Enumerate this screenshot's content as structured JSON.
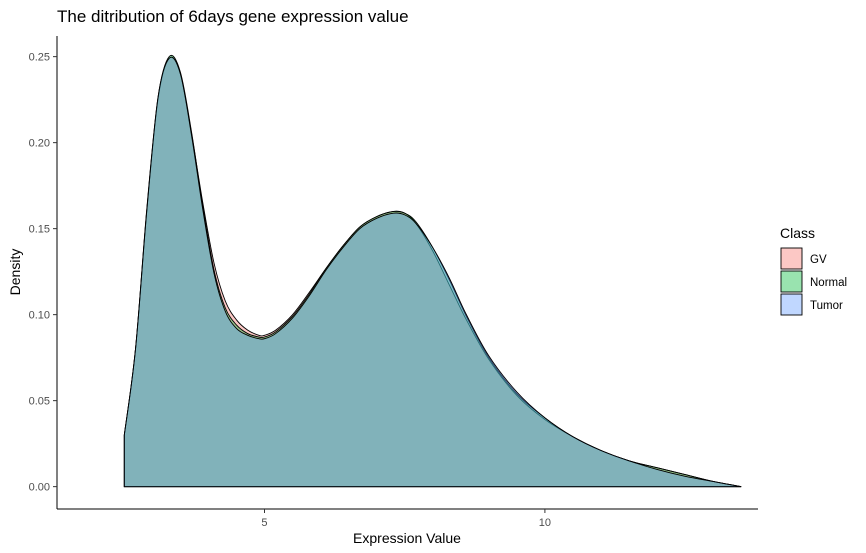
{
  "chart_data": {
    "type": "area",
    "title": "The ditribution of 6days gene expression value",
    "xlabel": "Expression Value",
    "ylabel": "Density",
    "xlim": [
      1.3,
      13.8
    ],
    "ylim": [
      -0.013,
      0.262
    ],
    "x_ticks": [
      5,
      10
    ],
    "y_ticks": [
      0.0,
      0.05,
      0.1,
      0.15,
      0.2,
      0.25
    ],
    "y_tick_labels": [
      "0.00",
      "0.05",
      "0.10",
      "0.15",
      "0.20",
      "0.25"
    ],
    "x_tick_labels": [
      "5",
      "10"
    ],
    "grid": false,
    "legend": {
      "title": "Class",
      "position": "right"
    },
    "series": [
      {
        "name": "GV",
        "color": "#F8766D",
        "x": [
          2.5,
          2.7,
          2.9,
          3.1,
          3.3,
          3.5,
          3.7,
          3.9,
          4.1,
          4.3,
          4.5,
          4.7,
          4.9,
          5.0,
          5.2,
          5.5,
          5.8,
          6.1,
          6.4,
          6.7,
          7.0,
          7.3,
          7.5,
          7.7,
          8.0,
          8.3,
          8.6,
          9.0,
          9.5,
          10.0,
          10.5,
          11.0,
          11.5,
          12.0,
          12.5,
          13.0,
          13.5
        ],
        "y": [
          0.03,
          0.08,
          0.16,
          0.225,
          0.249,
          0.24,
          0.205,
          0.165,
          0.13,
          0.108,
          0.097,
          0.091,
          0.088,
          0.088,
          0.091,
          0.1,
          0.113,
          0.127,
          0.14,
          0.151,
          0.157,
          0.16,
          0.159,
          0.153,
          0.137,
          0.117,
          0.097,
          0.074,
          0.053,
          0.039,
          0.029,
          0.021,
          0.015,
          0.011,
          0.007,
          0.003,
          0.0
        ]
      },
      {
        "name": "Normal",
        "color": "#00BA38",
        "x": [
          2.5,
          2.7,
          2.9,
          3.1,
          3.3,
          3.5,
          3.7,
          3.9,
          4.1,
          4.3,
          4.5,
          4.7,
          4.9,
          5.0,
          5.2,
          5.5,
          5.8,
          6.1,
          6.4,
          6.7,
          7.0,
          7.3,
          7.5,
          7.7,
          8.0,
          8.3,
          8.6,
          9.0,
          9.5,
          10.0,
          10.5,
          11.0,
          11.5,
          12.0,
          12.5,
          13.0,
          13.5
        ],
        "y": [
          0.03,
          0.08,
          0.161,
          0.226,
          0.25,
          0.241,
          0.206,
          0.163,
          0.126,
          0.104,
          0.094,
          0.089,
          0.087,
          0.087,
          0.09,
          0.099,
          0.112,
          0.127,
          0.14,
          0.151,
          0.157,
          0.16,
          0.159,
          0.154,
          0.139,
          0.12,
          0.099,
          0.075,
          0.054,
          0.04,
          0.029,
          0.021,
          0.015,
          0.011,
          0.007,
          0.003,
          0.0
        ]
      },
      {
        "name": "Tumor",
        "color": "#619CFF",
        "x": [
          2.5,
          2.7,
          2.9,
          3.1,
          3.3,
          3.5,
          3.7,
          3.9,
          4.1,
          4.3,
          4.5,
          4.7,
          4.9,
          5.0,
          5.2,
          5.5,
          5.8,
          6.1,
          6.4,
          6.7,
          7.0,
          7.3,
          7.5,
          7.7,
          8.0,
          8.3,
          8.6,
          9.0,
          9.5,
          10.0,
          10.5,
          11.0,
          11.5,
          12.0,
          12.5,
          13.0,
          13.5
        ],
        "y": [
          0.03,
          0.08,
          0.16,
          0.226,
          0.249,
          0.24,
          0.204,
          0.161,
          0.124,
          0.102,
          0.092,
          0.088,
          0.086,
          0.086,
          0.089,
          0.098,
          0.111,
          0.126,
          0.139,
          0.15,
          0.156,
          0.159,
          0.158,
          0.153,
          0.139,
          0.121,
          0.1,
          0.076,
          0.055,
          0.04,
          0.029,
          0.021,
          0.015,
          0.01,
          0.006,
          0.003,
          0.0
        ]
      }
    ]
  }
}
